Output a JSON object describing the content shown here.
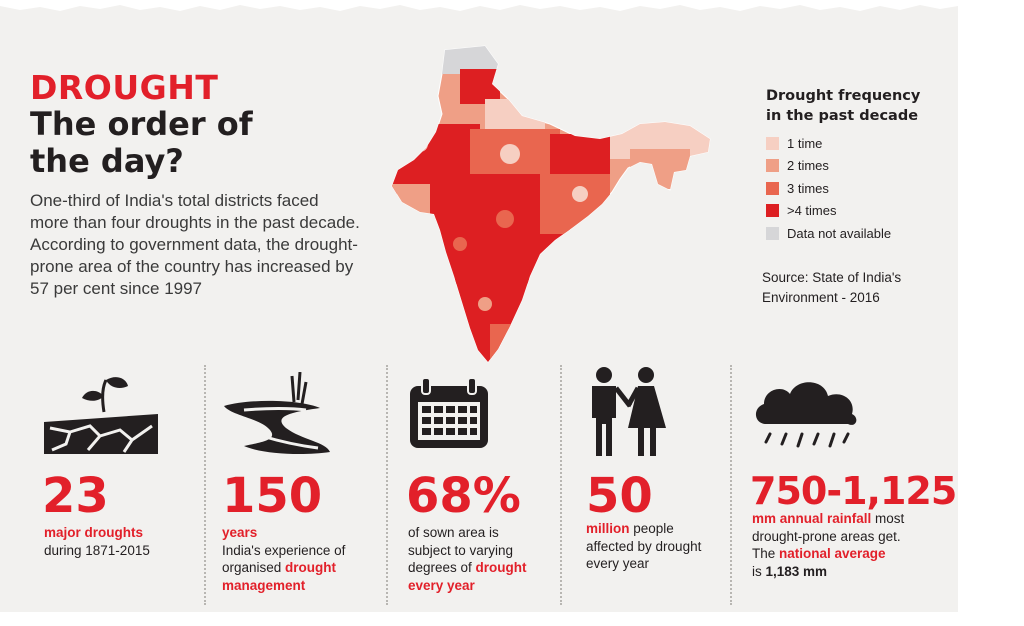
{
  "header": {
    "kicker": "DROUGHT",
    "title_line1": "The order of",
    "title_line2": "the day?",
    "intro_line1": "One-third of India's total districts faced",
    "intro_line2": "more than four droughts in the past decade.",
    "intro_line3": "According to government data, the drought-",
    "intro_line4": "prone area of the country has increased by",
    "intro_line5": "57 per cent since 1997"
  },
  "legend": {
    "title_line1": "Drought frequency",
    "title_line2": "in the past decade",
    "items": [
      {
        "label": "1 time",
        "color": "#f6cfc2"
      },
      {
        "label": "2 times",
        "color": "#ef9f86"
      },
      {
        "label": "3 times",
        "color": "#e9664f"
      },
      {
        "label": ">4 times",
        "color": "#dd1f22"
      },
      {
        "label": "Data not available",
        "color": "#d6d6d8"
      }
    ]
  },
  "source": {
    "line1": "Source: State of India's",
    "line2": "Environment - 2016"
  },
  "map": {
    "icon": "india-map"
  },
  "stats": [
    {
      "icon": "cracked-earth-sapling-icon",
      "number": "23",
      "line1": "major droughts",
      "line2": "during 1871-2015"
    },
    {
      "icon": "dry-river-icon",
      "number": "150",
      "line1": "years",
      "line2": "India's experience of",
      "line3_plain": "organised ",
      "line3_hl": "drought",
      "line4": "management"
    },
    {
      "icon": "calendar-icon",
      "number": "68%",
      "line1": "of sown area is",
      "line2": "subject to varying",
      "line3_plain": "degrees of ",
      "line3_hl": "drought",
      "line4": "every year"
    },
    {
      "icon": "people-icon",
      "number": "50",
      "line1_hl": "million",
      "line1_plain": " people",
      "line2": "affected by drought",
      "line3": "every year"
    },
    {
      "icon": "rain-cloud-icon",
      "number": "750-1,125",
      "line1_hl": "mm annual rainfall",
      "line1_plain": " most",
      "line2": "drought-prone areas get.",
      "line3_plain": "The ",
      "line3_hl": "national average",
      "line4_plain": "is ",
      "line4_em": "1,183 mm"
    }
  ]
}
